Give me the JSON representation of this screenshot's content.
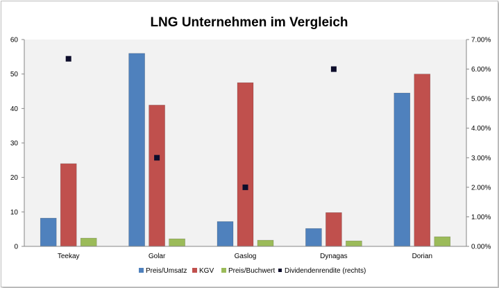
{
  "chart_data": {
    "type": "bar",
    "title": "LNG Unternehmen im Vergleich",
    "categories": [
      "Teekay",
      "Golar",
      "Gaslog",
      "Dynagas",
      "Dorian"
    ],
    "series": [
      {
        "name": "Preis/Umsatz",
        "values": [
          8.2,
          56.0,
          7.2,
          5.2,
          44.5
        ],
        "color": "#4f81bd"
      },
      {
        "name": "KGV",
        "values": [
          24.0,
          41.0,
          47.5,
          9.8,
          50.0
        ],
        "color": "#c0504d"
      },
      {
        "name": "Preis/Buchwert",
        "values": [
          2.4,
          2.2,
          1.8,
          1.6,
          2.8
        ],
        "color": "#9bbb59"
      }
    ],
    "secondary_series": {
      "name": "Dividendenrendite (rechts)",
      "type": "scatter",
      "axis": "right",
      "values": [
        0.0635,
        0.03,
        0.02,
        0.06,
        null
      ],
      "color": "#0d0d2b"
    },
    "y_left": {
      "min": 0,
      "max": 60,
      "ticks": [
        "0",
        "10",
        "20",
        "30",
        "40",
        "50",
        "60"
      ]
    },
    "y_right": {
      "min": 0,
      "max": 0.07,
      "ticks": [
        "0.00%",
        "1.00%",
        "2.00%",
        "3.00%",
        "4.00%",
        "5.00%",
        "6.00%",
        "7.00%"
      ]
    },
    "legend_position": "bottom",
    "plot_background": "#f2f2f2",
    "grid": false
  }
}
